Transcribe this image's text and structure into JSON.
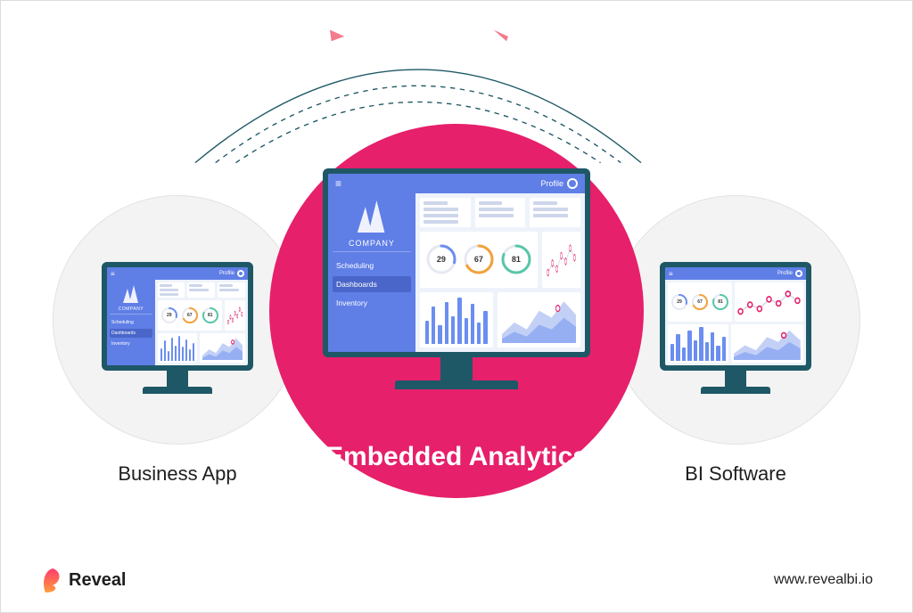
{
  "labels": {
    "left": "Business App",
    "center": "Embedded Analytics",
    "right": "BI Software"
  },
  "colors": {
    "center_circle": "#e6206a",
    "side_circle_bg": "#f3f3f3",
    "side_circle_border": "#e2e2e2",
    "monitor_bezel": "#1e5866",
    "ui_blue": "#5f7ee6",
    "ui_blue_dark": "#4a66c9",
    "screen_bg": "#eef3fb",
    "skeleton": "#cdd6ea",
    "bar_fill": "#6b8ef0",
    "area_fill": "#8ea9f2",
    "area_fill2": "#b9c8f4",
    "arc_stroke": "#1e5866",
    "arrow": "#f27c8c",
    "brand_gradient_top": "#ff3a6e",
    "brand_gradient_bottom": "#ff9c3a"
  },
  "topbar": {
    "profile_label": "Profile"
  },
  "sidebar": {
    "company": "COMPANY",
    "items": [
      {
        "label": "Scheduling",
        "active": false
      },
      {
        "label": "Dashboards",
        "active": true
      },
      {
        "label": "Inventory",
        "active": false
      }
    ]
  },
  "dashboard": {
    "gauges": [
      {
        "value": 29,
        "color": "#6b8ef0"
      },
      {
        "value": 67,
        "color": "#f2a13a"
      },
      {
        "value": 81,
        "color": "#58c6a8"
      }
    ],
    "line_points": [
      15,
      40,
      25,
      60,
      45,
      80,
      55
    ],
    "line_accent_color": "#e6206a",
    "bars": [
      50,
      80,
      40,
      90,
      60,
      100,
      55,
      85,
      45,
      70
    ],
    "area1": [
      20,
      45,
      30,
      70,
      55,
      90,
      60
    ],
    "area2": [
      10,
      25,
      15,
      40,
      30,
      55,
      35
    ]
  },
  "footer": {
    "brand": "Reveal",
    "url": "www.revealbi.io"
  },
  "arcs": {
    "dash": "6 6",
    "stroke_width": 1.5
  }
}
